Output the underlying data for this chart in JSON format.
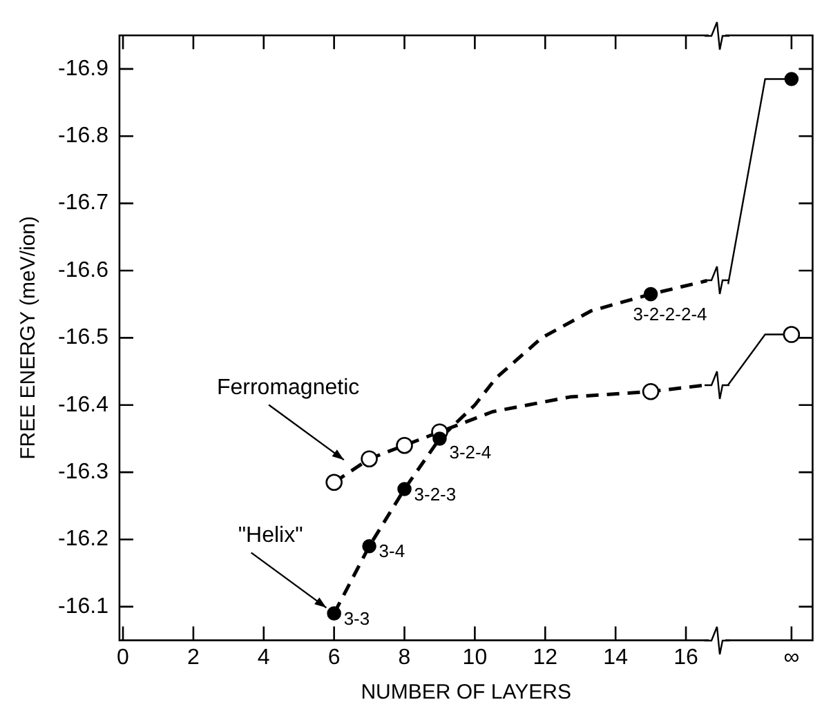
{
  "chart_data": {
    "type": "line",
    "xlabel": "NUMBER OF LAYERS",
    "ylabel": "FREE ENERGY (meV/ion)",
    "xlim": [
      -0.1,
      19.6
    ],
    "xticks": [
      0,
      2,
      4,
      6,
      8,
      10,
      12,
      14,
      16,
      {
        "value": 19,
        "label": "∞"
      }
    ],
    "ylim": [
      -16.05,
      -16.95
    ],
    "yticks": [
      -16.1,
      -16.2,
      -16.3,
      -16.4,
      -16.5,
      -16.6,
      -16.7,
      -16.8,
      -16.9
    ],
    "grid": false,
    "legend": false,
    "annotations": [
      {
        "text": "Ferromagnetic",
        "x": 6.5,
        "y": -16.31
      },
      {
        "text": "\"Helix\"",
        "x": 6,
        "y": -16.09
      }
    ],
    "series": [
      {
        "color": "#000000",
        "line_style": "dashed",
        "marker": "none",
        "x": [
          6,
          7,
          8,
          9,
          10,
          10.6,
          11.9,
          13.3,
          15,
          16.6
        ],
        "values": [
          -16.09,
          -16.19,
          -16.275,
          -16.35,
          -16.4,
          -16.44,
          -16.5,
          -16.54,
          -16.565,
          -16.585
        ]
      },
      {
        "color": "#000000",
        "line_style": "solid",
        "marker": "none",
        "x": [
          17.2,
          18.25,
          19
        ],
        "values": [
          -16.58,
          -16.885,
          -16.885
        ]
      },
      {
        "color": "#000000",
        "line_style": "dashed",
        "marker": "none",
        "x": [
          6,
          7,
          8,
          9,
          10.5,
          12.7,
          15,
          16.6
        ],
        "values": [
          -16.285,
          -16.32,
          -16.34,
          -16.36,
          -16.39,
          -16.412,
          -16.42,
          -16.43
        ]
      },
      {
        "color": "#000000",
        "line_style": "solid",
        "marker": "none",
        "x": [
          17.2,
          18.25,
          19
        ],
        "values": [
          -16.43,
          -16.505,
          -16.505
        ]
      },
      {
        "type": "scatter",
        "color": "#000000",
        "marker": "circle",
        "x": [
          6,
          7,
          8,
          9,
          15,
          19
        ],
        "values": [
          -16.09,
          -16.19,
          -16.275,
          -16.35,
          -16.565,
          -16.885
        ],
        "value_labels": [
          "3-3",
          "3-4",
          "3-2-3",
          "3-2-4",
          "3-2-2-2-4",
          null
        ]
      },
      {
        "type": "scatter",
        "color": "#000000",
        "marker": "circle",
        "x": [
          6,
          7,
          8,
          9,
          15,
          19
        ],
        "values": [
          -16.285,
          -16.32,
          -16.34,
          -16.36,
          -16.42,
          -16.505
        ]
      }
    ]
  }
}
